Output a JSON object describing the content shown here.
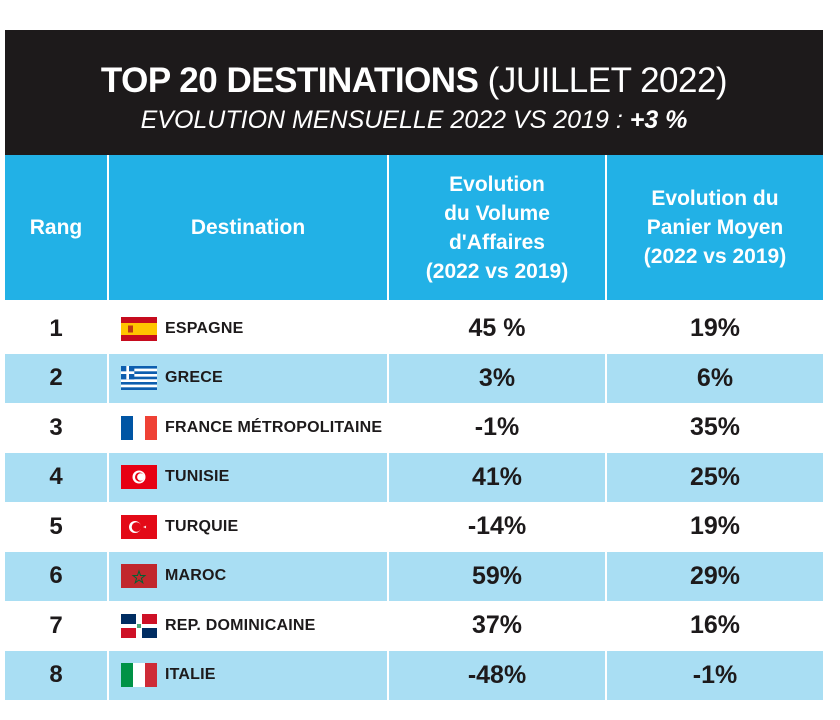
{
  "title": {
    "bold": "TOP 20 DESTINATIONS",
    "light": "(JUILLET 2022)",
    "subtitle_prefix": "EVOLUTION MENSUELLE 2022 VS 2019 :",
    "subtitle_value": "+3 %"
  },
  "headers": {
    "rank": "Rang",
    "destination": "Destination",
    "volume": [
      "Evolution",
      "du Volume",
      "d'Affaires",
      "(2022 vs 2019)"
    ],
    "panier": [
      "Evolution du",
      "Panier Moyen",
      "(2022 vs 2019)"
    ]
  },
  "chart_data": {
    "type": "table",
    "columns": [
      "Rang",
      "Destination",
      "Evolution du Volume d'Affaires (2022 vs 2019)",
      "Evolution du Panier Moyen (2022 vs 2019)"
    ],
    "rows": [
      {
        "rank": "1",
        "destination": "ESPAGNE",
        "flag": "spain-flag",
        "volume": "45 %",
        "panier": "19%"
      },
      {
        "rank": "2",
        "destination": "GRECE",
        "flag": "greece-flag",
        "volume": "3%",
        "panier": "6%"
      },
      {
        "rank": "3",
        "destination": "FRANCE MÉTROPOLITAINE",
        "flag": "france-flag",
        "volume": "-1%",
        "panier": "35%"
      },
      {
        "rank": "4",
        "destination": "TUNISIE",
        "flag": "tunisia-flag",
        "volume": "41%",
        "panier": "25%"
      },
      {
        "rank": "5",
        "destination": "TURQUIE",
        "flag": "turkey-flag",
        "volume": "-14%",
        "panier": "19%"
      },
      {
        "rank": "6",
        "destination": "MAROC",
        "flag": "morocco-flag",
        "volume": "59%",
        "panier": "29%"
      },
      {
        "rank": "7",
        "destination": "REP. DOMINICAINE",
        "flag": "dominican-republic-flag",
        "volume": "37%",
        "panier": "16%"
      },
      {
        "rank": "8",
        "destination": "ITALIE",
        "flag": "italy-flag",
        "volume": "-48%",
        "panier": "-1%"
      }
    ]
  },
  "colors": {
    "title_background": "#1d1a1b",
    "header_background": "#22b1e6",
    "alt_row_background": "#a9def3",
    "text": "#1d1a1b"
  }
}
